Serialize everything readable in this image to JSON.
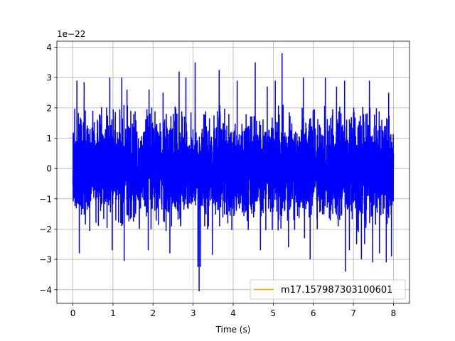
{
  "chart_data": {
    "type": "line",
    "title": "",
    "xlabel": "Time (s)",
    "ylabel": "",
    "y_offset_text": "1e−22",
    "xlim": [
      -0.4,
      8.4
    ],
    "ylim": [
      -4.45,
      4.2
    ],
    "x_ticks": [
      0,
      1,
      2,
      3,
      4,
      5,
      6,
      7,
      8
    ],
    "x_tick_labels": [
      "0",
      "1",
      "2",
      "3",
      "4",
      "5",
      "6",
      "7",
      "8"
    ],
    "y_ticks": [
      -4,
      -3,
      -2,
      -1,
      0,
      1,
      2,
      3,
      4
    ],
    "y_tick_labels": [
      "−4",
      "−3",
      "−2",
      "−1",
      "0",
      "1",
      "2",
      "3",
      "4"
    ],
    "grid": true,
    "legend_position": "lower-right",
    "series": [
      {
        "label": "",
        "color": "#0000ff",
        "description": "noise-like strain time series, roughly Gaussian with std ~0.75e-22, plotted densely from t=0 to t=8 s",
        "x_range": [
          0,
          8
        ],
        "y_extremes": {
          "max": 3.8,
          "min": -4.05
        },
        "envelope": {
          "typical_max": 2.1,
          "typical_min": -2.1
        },
        "peaks": [
          {
            "x": 0.1,
            "y": 2.9
          },
          {
            "x": 0.28,
            "y": 2.85
          },
          {
            "x": 0.16,
            "y": -2.8
          },
          {
            "x": 0.92,
            "y": 3.0
          },
          {
            "x": 0.98,
            "y": -2.7
          },
          {
            "x": 1.22,
            "y": 3.0
          },
          {
            "x": 1.28,
            "y": -3.05
          },
          {
            "x": 1.35,
            "y": 2.6
          },
          {
            "x": 1.9,
            "y": 2.6
          },
          {
            "x": 1.88,
            "y": -2.7
          },
          {
            "x": 2.25,
            "y": 2.5
          },
          {
            "x": 2.42,
            "y": 3.1
          },
          {
            "x": 2.42,
            "y": -2.8
          },
          {
            "x": 2.65,
            "y": 3.2
          },
          {
            "x": 2.82,
            "y": 3.0
          },
          {
            "x": 3.05,
            "y": 3.5
          },
          {
            "x": 3.12,
            "y": -3.25
          },
          {
            "x": 3.15,
            "y": -4.05
          },
          {
            "x": 3.18,
            "y": -3.25
          },
          {
            "x": 3.65,
            "y": 3.25
          },
          {
            "x": 3.48,
            "y": -2.85
          },
          {
            "x": 4.1,
            "y": 2.9
          },
          {
            "x": 4.55,
            "y": 3.5
          },
          {
            "x": 4.85,
            "y": 2.7
          },
          {
            "x": 4.68,
            "y": -2.7
          },
          {
            "x": 5.05,
            "y": 2.9
          },
          {
            "x": 5.22,
            "y": 3.8
          },
          {
            "x": 5.38,
            "y": -2.6
          },
          {
            "x": 5.75,
            "y": 3.0
          },
          {
            "x": 5.78,
            "y": -2.3
          },
          {
            "x": 5.92,
            "y": -3.0
          },
          {
            "x": 6.3,
            "y": 3.0
          },
          {
            "x": 6.58,
            "y": 2.7
          },
          {
            "x": 6.78,
            "y": 2.9
          },
          {
            "x": 6.8,
            "y": -3.4
          },
          {
            "x": 6.9,
            "y": -2.7
          },
          {
            "x": 7.08,
            "y": -2.5
          },
          {
            "x": 7.2,
            "y": -3.0
          },
          {
            "x": 7.28,
            "y": -2.5
          },
          {
            "x": 7.4,
            "y": 2.9
          },
          {
            "x": 7.48,
            "y": -3.1
          },
          {
            "x": 7.65,
            "y": -2.8
          },
          {
            "x": 7.82,
            "y": -3.1
          },
          {
            "x": 7.88,
            "y": 2.5
          },
          {
            "x": 7.95,
            "y": -2.9
          }
        ]
      },
      {
        "label": "m17.157987303100601",
        "color": "#ffa500",
        "description": "legend-only series, no visible data"
      }
    ]
  }
}
